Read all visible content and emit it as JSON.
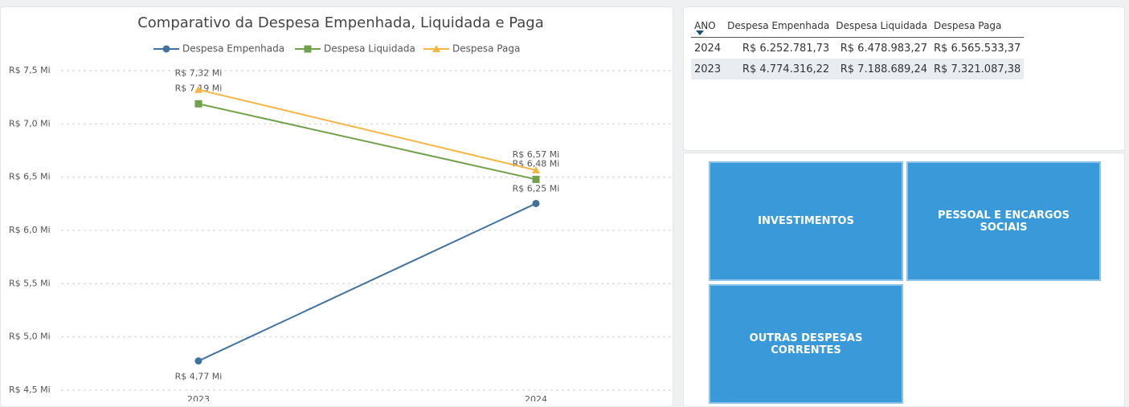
{
  "chart_data": {
    "type": "line",
    "title": "Comparativo da Despesa Empenhada, Liquidada e Paga",
    "categories": [
      "2023",
      "2024"
    ],
    "series": [
      {
        "name": "Despesa Empenhada",
        "color": "#41729f",
        "marker": "circle",
        "values": [
          4.77431622,
          6.25278173
        ],
        "value_labels": [
          "R$ 4,77 Mi",
          "R$ 6,25 Mi"
        ]
      },
      {
        "name": "Despesa Liquidada",
        "color": "#6fa24a",
        "marker": "square",
        "values": [
          7.18868924,
          6.47898327
        ],
        "value_labels": [
          "R$ 7,19 Mi",
          "R$ 6,48 Mi"
        ]
      },
      {
        "name": "Despesa Paga",
        "color": "#f5b642",
        "marker": "triangle",
        "values": [
          7.32108738,
          6.56553337
        ],
        "value_labels": [
          "R$ 7,32 Mi",
          "R$ 6,57 Mi"
        ]
      }
    ],
    "ylim": [
      4.5,
      7.5
    ],
    "yticks": [
      {
        "value": 4.5,
        "label": "R$ 4,5 Mi"
      },
      {
        "value": 5.0,
        "label": "R$ 5,0 Mi"
      },
      {
        "value": 5.5,
        "label": "R$ 5,5 Mi"
      },
      {
        "value": 6.0,
        "label": "R$ 6,0 Mi"
      },
      {
        "value": 6.5,
        "label": "R$ 6,5 Mi"
      },
      {
        "value": 7.0,
        "label": "R$ 7,0 Mi"
      },
      {
        "value": 7.5,
        "label": "R$ 7,5 Mi"
      }
    ],
    "grid": true,
    "legend": "top"
  },
  "table": {
    "header": [
      "ANO",
      "Despesa Empenhada",
      "Despesa Liquidada",
      "Despesa Paga"
    ],
    "rows": [
      [
        "2024",
        "R$ 6.252.781,73",
        "R$ 6.478.983,27",
        "R$ 6.565.533,37"
      ],
      [
        "2023",
        "R$ 4.774.316,22",
        "R$ 7.188.689,24",
        "R$ 7.321.087,38"
      ]
    ]
  },
  "tiles": [
    "INVESTIMENTOS",
    "PESSOAL E ENCARGOS SOCIAIS",
    "OUTRAS DESPESAS CORRENTES"
  ]
}
